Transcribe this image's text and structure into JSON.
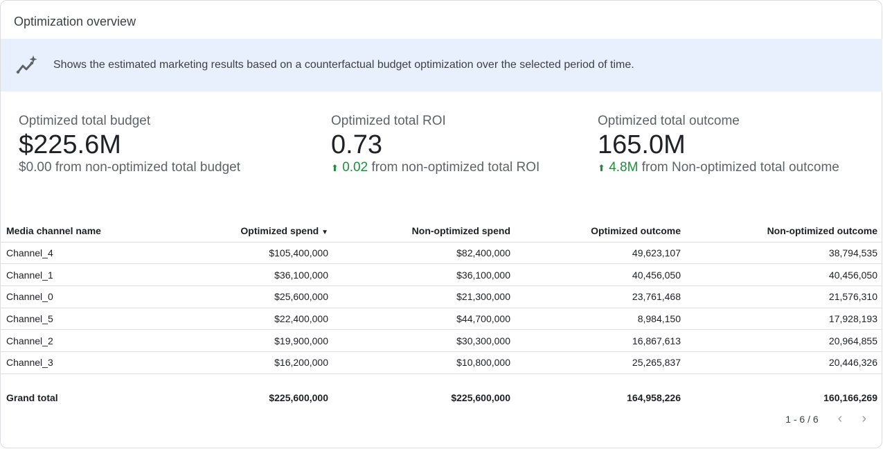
{
  "title": "Optimization overview",
  "banner": {
    "icon": "trending-sparkle-icon",
    "text": "Shows the estimated marketing results based on a counterfactual budget optimization over the selected period of time."
  },
  "kpis": [
    {
      "label": "Optimized total budget",
      "value": "$225.6M",
      "delta": "",
      "delta_text": "$0.00 from non-optimized total budget"
    },
    {
      "label": "Optimized total ROI",
      "value": "0.73",
      "delta": "0.02",
      "delta_text": " from non-optimized total ROI"
    },
    {
      "label": "Optimized total outcome",
      "value": "165.0M",
      "delta": "4.8M",
      "delta_text": " from Non-optimized total outcome"
    }
  ],
  "colors": {
    "positive": "#1e8e3e",
    "banner": "#e8f0fe"
  },
  "table": {
    "headers": [
      "Media channel name",
      "Optimized spend",
      "Non-optimized spend",
      "Optimized outcome",
      "Non-optimized outcome"
    ],
    "sort": {
      "column": "Optimized spend",
      "direction": "descending"
    },
    "rows": [
      [
        "Channel_4",
        "$105,400,000",
        "$82,400,000",
        "49,623,107",
        "38,794,535"
      ],
      [
        "Channel_1",
        "$36,100,000",
        "$36,100,000",
        "40,456,050",
        "40,456,050"
      ],
      [
        "Channel_0",
        "$25,600,000",
        "$21,300,000",
        "23,761,468",
        "21,576,310"
      ],
      [
        "Channel_5",
        "$22,400,000",
        "$44,700,000",
        "8,984,150",
        "17,928,193"
      ],
      [
        "Channel_2",
        "$19,900,000",
        "$30,300,000",
        "16,867,613",
        "20,964,855"
      ],
      [
        "Channel_3",
        "$16,200,000",
        "$10,800,000",
        "25,265,837",
        "20,446,326"
      ]
    ],
    "total": [
      "Grand total",
      "$225,600,000",
      "$225,600,000",
      "164,958,226",
      "160,166,269"
    ]
  },
  "pager": {
    "text": "1 - 6 / 6"
  }
}
